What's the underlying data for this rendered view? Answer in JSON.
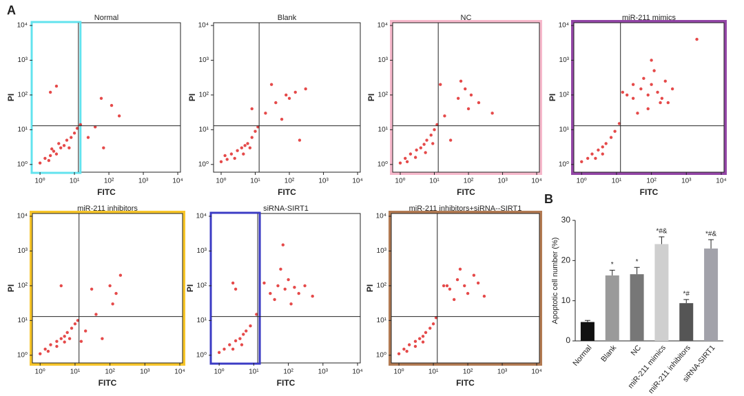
{
  "panel_labels": [
    "A",
    "B"
  ],
  "chart_data": [
    {
      "type": "scatter",
      "title": "Normal",
      "x_label": "FITC",
      "y_label": "PI",
      "log": true,
      "color": "#e02a2a",
      "xlim": [
        0.6,
        12000
      ],
      "ylim": [
        0.6,
        12000
      ],
      "gate": [
        13,
        13
      ],
      "highlight": {
        "region": "left",
        "color": "#62e3ee"
      },
      "xticks": [
        {
          "value": 1,
          "label": "10⁰"
        },
        {
          "value": 10,
          "label": "10¹"
        },
        {
          "value": 100,
          "label": "10²"
        },
        {
          "value": 1000,
          "label": "10³"
        },
        {
          "value": 10000,
          "label": "10⁴"
        }
      ],
      "yticks": [
        {
          "value": 1,
          "label": "10⁰"
        },
        {
          "value": 10,
          "label": "10¹"
        },
        {
          "value": 100,
          "label": "10²"
        },
        {
          "value": 1000,
          "label": "10³"
        },
        {
          "value": 10000,
          "label": "10⁴"
        }
      ],
      "x": [
        1,
        1.4,
        2,
        2.5,
        3,
        4,
        5,
        6,
        8,
        10,
        12,
        1.8,
        3.5,
        7,
        2.2,
        15,
        25,
        40,
        70,
        120,
        200,
        2,
        3,
        60
      ],
      "values": [
        1.1,
        1.5,
        1.8,
        2.4,
        2,
        3,
        3.5,
        5,
        6,
        8,
        11,
        1.3,
        4,
        3,
        2.8,
        14,
        6,
        12,
        3,
        50,
        25,
        120,
        180,
        80
      ]
    },
    {
      "type": "scatter",
      "title": "Blank",
      "x_label": "FITC",
      "y_label": "PI",
      "log": true,
      "color": "#e02a2a",
      "xlim": [
        0.6,
        12000
      ],
      "ylim": [
        0.6,
        12000
      ],
      "gate": [
        13,
        13
      ],
      "xticks": [
        {
          "value": 1,
          "label": "10⁰"
        },
        {
          "value": 10,
          "label": "10¹"
        },
        {
          "value": 100,
          "label": "10²"
        },
        {
          "value": 1000,
          "label": "10³"
        },
        {
          "value": 10000,
          "label": "10⁴"
        }
      ],
      "yticks": [
        {
          "value": 1,
          "label": "10⁰"
        },
        {
          "value": 10,
          "label": "10¹"
        },
        {
          "value": 100,
          "label": "10²"
        },
        {
          "value": 1000,
          "label": "10³"
        },
        {
          "value": 10000,
          "label": "10⁴"
        }
      ],
      "x": [
        1,
        1.5,
        2,
        3,
        4,
        5,
        6,
        8,
        10,
        1.3,
        2.5,
        4.5,
        7,
        12,
        20,
        40,
        80,
        100,
        150,
        60,
        300,
        30,
        8,
        200
      ],
      "values": [
        1.2,
        1.4,
        2,
        2.5,
        3,
        3.5,
        4,
        6,
        9,
        1.8,
        1.5,
        2,
        3,
        12,
        30,
        60,
        100,
        80,
        120,
        20,
        150,
        200,
        40,
        5
      ]
    },
    {
      "type": "scatter",
      "title": "NC",
      "x_label": "FITC",
      "y_label": "PI",
      "log": true,
      "color": "#e02a2a",
      "xlim": [
        0.6,
        12000
      ],
      "ylim": [
        0.6,
        12000
      ],
      "gate": [
        13,
        13
      ],
      "highlight": {
        "region": "frame",
        "color": "#f6b8cb"
      },
      "xticks": [
        {
          "value": 1,
          "label": "10⁰"
        },
        {
          "value": 10,
          "label": "10¹"
        },
        {
          "value": 100,
          "label": "10²"
        },
        {
          "value": 1000,
          "label": "10³"
        },
        {
          "value": 10000,
          "label": "10⁴"
        }
      ],
      "yticks": [
        {
          "value": 1,
          "label": "10⁰"
        },
        {
          "value": 10,
          "label": "10¹"
        },
        {
          "value": 100,
          "label": "10²"
        },
        {
          "value": 1000,
          "label": "10³"
        },
        {
          "value": 10000,
          "label": "10⁴"
        }
      ],
      "x": [
        1,
        1.4,
        2,
        3,
        4,
        5,
        6,
        8,
        10,
        1.6,
        2.8,
        5.5,
        9,
        12,
        20,
        50,
        80,
        120,
        100,
        200,
        500,
        30,
        15,
        60
      ],
      "values": [
        1.1,
        1.5,
        2,
        2.6,
        3,
        3.8,
        5,
        7,
        10,
        1.2,
        1.6,
        2.2,
        4,
        14,
        25,
        80,
        150,
        100,
        40,
        60,
        30,
        5,
        200,
        250
      ]
    },
    {
      "type": "scatter",
      "title": "miR-211 mimics",
      "x_label": "FITC",
      "y_label": "PI",
      "log": true,
      "color": "#e02a2a",
      "xlim": [
        0.6,
        12000
      ],
      "ylim": [
        0.6,
        12000
      ],
      "gate": [
        13,
        13
      ],
      "highlight": {
        "region": "frame",
        "color": "#9346a6"
      },
      "xticks": [
        {
          "value": 1,
          "label": "10⁰"
        },
        {
          "value": 10,
          "label": "10¹"
        },
        {
          "value": 100,
          "label": "10²"
        },
        {
          "value": 1000,
          "label": "10³"
        },
        {
          "value": 10000,
          "label": "10⁴"
        }
      ],
      "yticks": [
        {
          "value": 1,
          "label": "10⁰"
        },
        {
          "value": 10,
          "label": "10¹"
        },
        {
          "value": 100,
          "label": "10²"
        },
        {
          "value": 1000,
          "label": "10³"
        },
        {
          "value": 10000,
          "label": "10⁴"
        }
      ],
      "x": [
        1,
        1.5,
        2,
        3,
        4,
        5,
        7,
        9,
        2.5,
        4,
        12,
        30,
        50,
        80,
        100,
        150,
        200,
        300,
        60,
        120,
        250,
        400,
        80,
        40,
        20,
        100,
        2000,
        30,
        15,
        180
      ],
      "values": [
        1.2,
        1.5,
        2,
        2.6,
        3.2,
        4,
        6,
        9,
        1.5,
        2,
        15,
        80,
        150,
        100,
        200,
        120,
        80,
        60,
        300,
        500,
        250,
        150,
        40,
        30,
        100,
        1000,
        4000,
        200,
        120,
        60
      ]
    },
    {
      "type": "scatter",
      "title": "miR-211 inhibitors",
      "x_label": "FITC",
      "y_label": "PI",
      "log": true,
      "color": "#e02a2a",
      "xlim": [
        0.6,
        12000
      ],
      "ylim": [
        0.6,
        12000
      ],
      "gate": [
        13,
        13
      ],
      "highlight": {
        "region": "frame",
        "color": "#f7c52a"
      },
      "xticks": [
        {
          "value": 1,
          "label": "10⁰"
        },
        {
          "value": 10,
          "label": "10¹"
        },
        {
          "value": 100,
          "label": "10²"
        },
        {
          "value": 1000,
          "label": "10³"
        },
        {
          "value": 10000,
          "label": "10⁴"
        }
      ],
      "yticks": [
        {
          "value": 1,
          "label": "10⁰"
        },
        {
          "value": 10,
          "label": "10¹"
        },
        {
          "value": 100,
          "label": "10²"
        },
        {
          "value": 1000,
          "label": "10³"
        },
        {
          "value": 10000,
          "label": "10⁴"
        }
      ],
      "x": [
        1,
        1.4,
        2,
        3,
        4,
        5,
        6,
        8,
        10,
        1.7,
        3,
        5,
        7,
        12,
        20,
        40,
        100,
        150,
        200,
        120,
        60,
        30,
        15,
        4
      ],
      "values": [
        1.1,
        1.5,
        2,
        2.5,
        3,
        3.5,
        4.5,
        6,
        8,
        1.3,
        1.8,
        2.4,
        3,
        10,
        5,
        15,
        100,
        60,
        200,
        30,
        3,
        80,
        2.5,
        100
      ]
    },
    {
      "type": "scatter",
      "title": "siRNA-SIRT1",
      "x_label": "FITC",
      "y_label": "PI",
      "log": true,
      "color": "#e02a2a",
      "xlim": [
        0.6,
        12000
      ],
      "ylim": [
        0.6,
        12000
      ],
      "gate": [
        13,
        13
      ],
      "highlight": {
        "region": "left",
        "color": "#3b3bc4"
      },
      "xticks": [
        {
          "value": 1,
          "label": "10⁰"
        },
        {
          "value": 10,
          "label": "10¹"
        },
        {
          "value": 100,
          "label": "10²"
        },
        {
          "value": 1000,
          "label": "10³"
        },
        {
          "value": 10000,
          "label": "10⁴"
        }
      ],
      "yticks": [
        {
          "value": 1,
          "label": "10⁰"
        },
        {
          "value": 10,
          "label": "10¹"
        },
        {
          "value": 100,
          "label": "10²"
        },
        {
          "value": 1000,
          "label": "10³"
        },
        {
          "value": 10000,
          "label": "10⁴"
        }
      ],
      "x": [
        1,
        1.4,
        2,
        3,
        4,
        5,
        6,
        8,
        2.5,
        4.5,
        12,
        30,
        50,
        80,
        100,
        150,
        200,
        60,
        40,
        300,
        120,
        20,
        500,
        70,
        3,
        2.5
      ],
      "values": [
        1.2,
        1.5,
        2,
        2.6,
        3,
        4,
        5,
        7,
        1.5,
        2,
        15,
        60,
        100,
        80,
        150,
        90,
        60,
        300,
        40,
        100,
        30,
        120,
        50,
        1500,
        80,
        120
      ]
    },
    {
      "type": "scatter",
      "title": "miR-211 inhibitors+siRNA--SIRT1",
      "x_label": "FITC",
      "y_label": "PI",
      "log": true,
      "color": "#e02a2a",
      "xlim": [
        0.6,
        12000
      ],
      "ylim": [
        0.6,
        12000
      ],
      "gate": [
        13,
        13
      ],
      "highlight": {
        "region": "frame",
        "color": "#b27a52"
      },
      "xticks": [
        {
          "value": 1,
          "label": "10⁰"
        },
        {
          "value": 10,
          "label": "10¹"
        },
        {
          "value": 100,
          "label": "10²"
        },
        {
          "value": 1000,
          "label": "10³"
        },
        {
          "value": 10000,
          "label": "10⁴"
        }
      ],
      "yticks": [
        {
          "value": 1,
          "label": "10⁰"
        },
        {
          "value": 10,
          "label": "10¹"
        },
        {
          "value": 100,
          "label": "10²"
        },
        {
          "value": 1000,
          "label": "10³"
        },
        {
          "value": 10000,
          "label": "10⁴"
        }
      ],
      "x": [
        1,
        1.4,
        2,
        3,
        4,
        5,
        6,
        8,
        10,
        1.7,
        3,
        5,
        12,
        30,
        50,
        80,
        100,
        150,
        200,
        60,
        40,
        300,
        20,
        25
      ],
      "values": [
        1.1,
        1.5,
        2,
        2.5,
        3,
        3.5,
        4.5,
        6,
        8,
        1.3,
        1.8,
        2.4,
        12,
        80,
        150,
        100,
        60,
        200,
        120,
        300,
        40,
        50,
        100,
        100
      ]
    },
    {
      "type": "bar",
      "y_label": "Apoptotic cell number (%)",
      "categories": [
        "Normal",
        "Blank",
        "NC",
        "miR-211 mimics",
        "miR-211 inhibitors",
        "siRNA-SIRT1"
      ],
      "values": [
        4.7,
        16.3,
        16.6,
        24.1,
        9.4,
        23.0
      ],
      "errors": [
        0.4,
        1.3,
        1.7,
        1.8,
        0.9,
        2.2
      ],
      "annotations": [
        null,
        "*",
        "*",
        "*#&",
        "*#",
        "*#&"
      ],
      "colors": [
        "#111111",
        "#9a9a9a",
        "#777777",
        "#cfcfcf",
        "#555555",
        "#a2a2aa"
      ],
      "ylim": [
        0,
        30
      ],
      "yticks": [
        0,
        10,
        20,
        30
      ]
    }
  ]
}
